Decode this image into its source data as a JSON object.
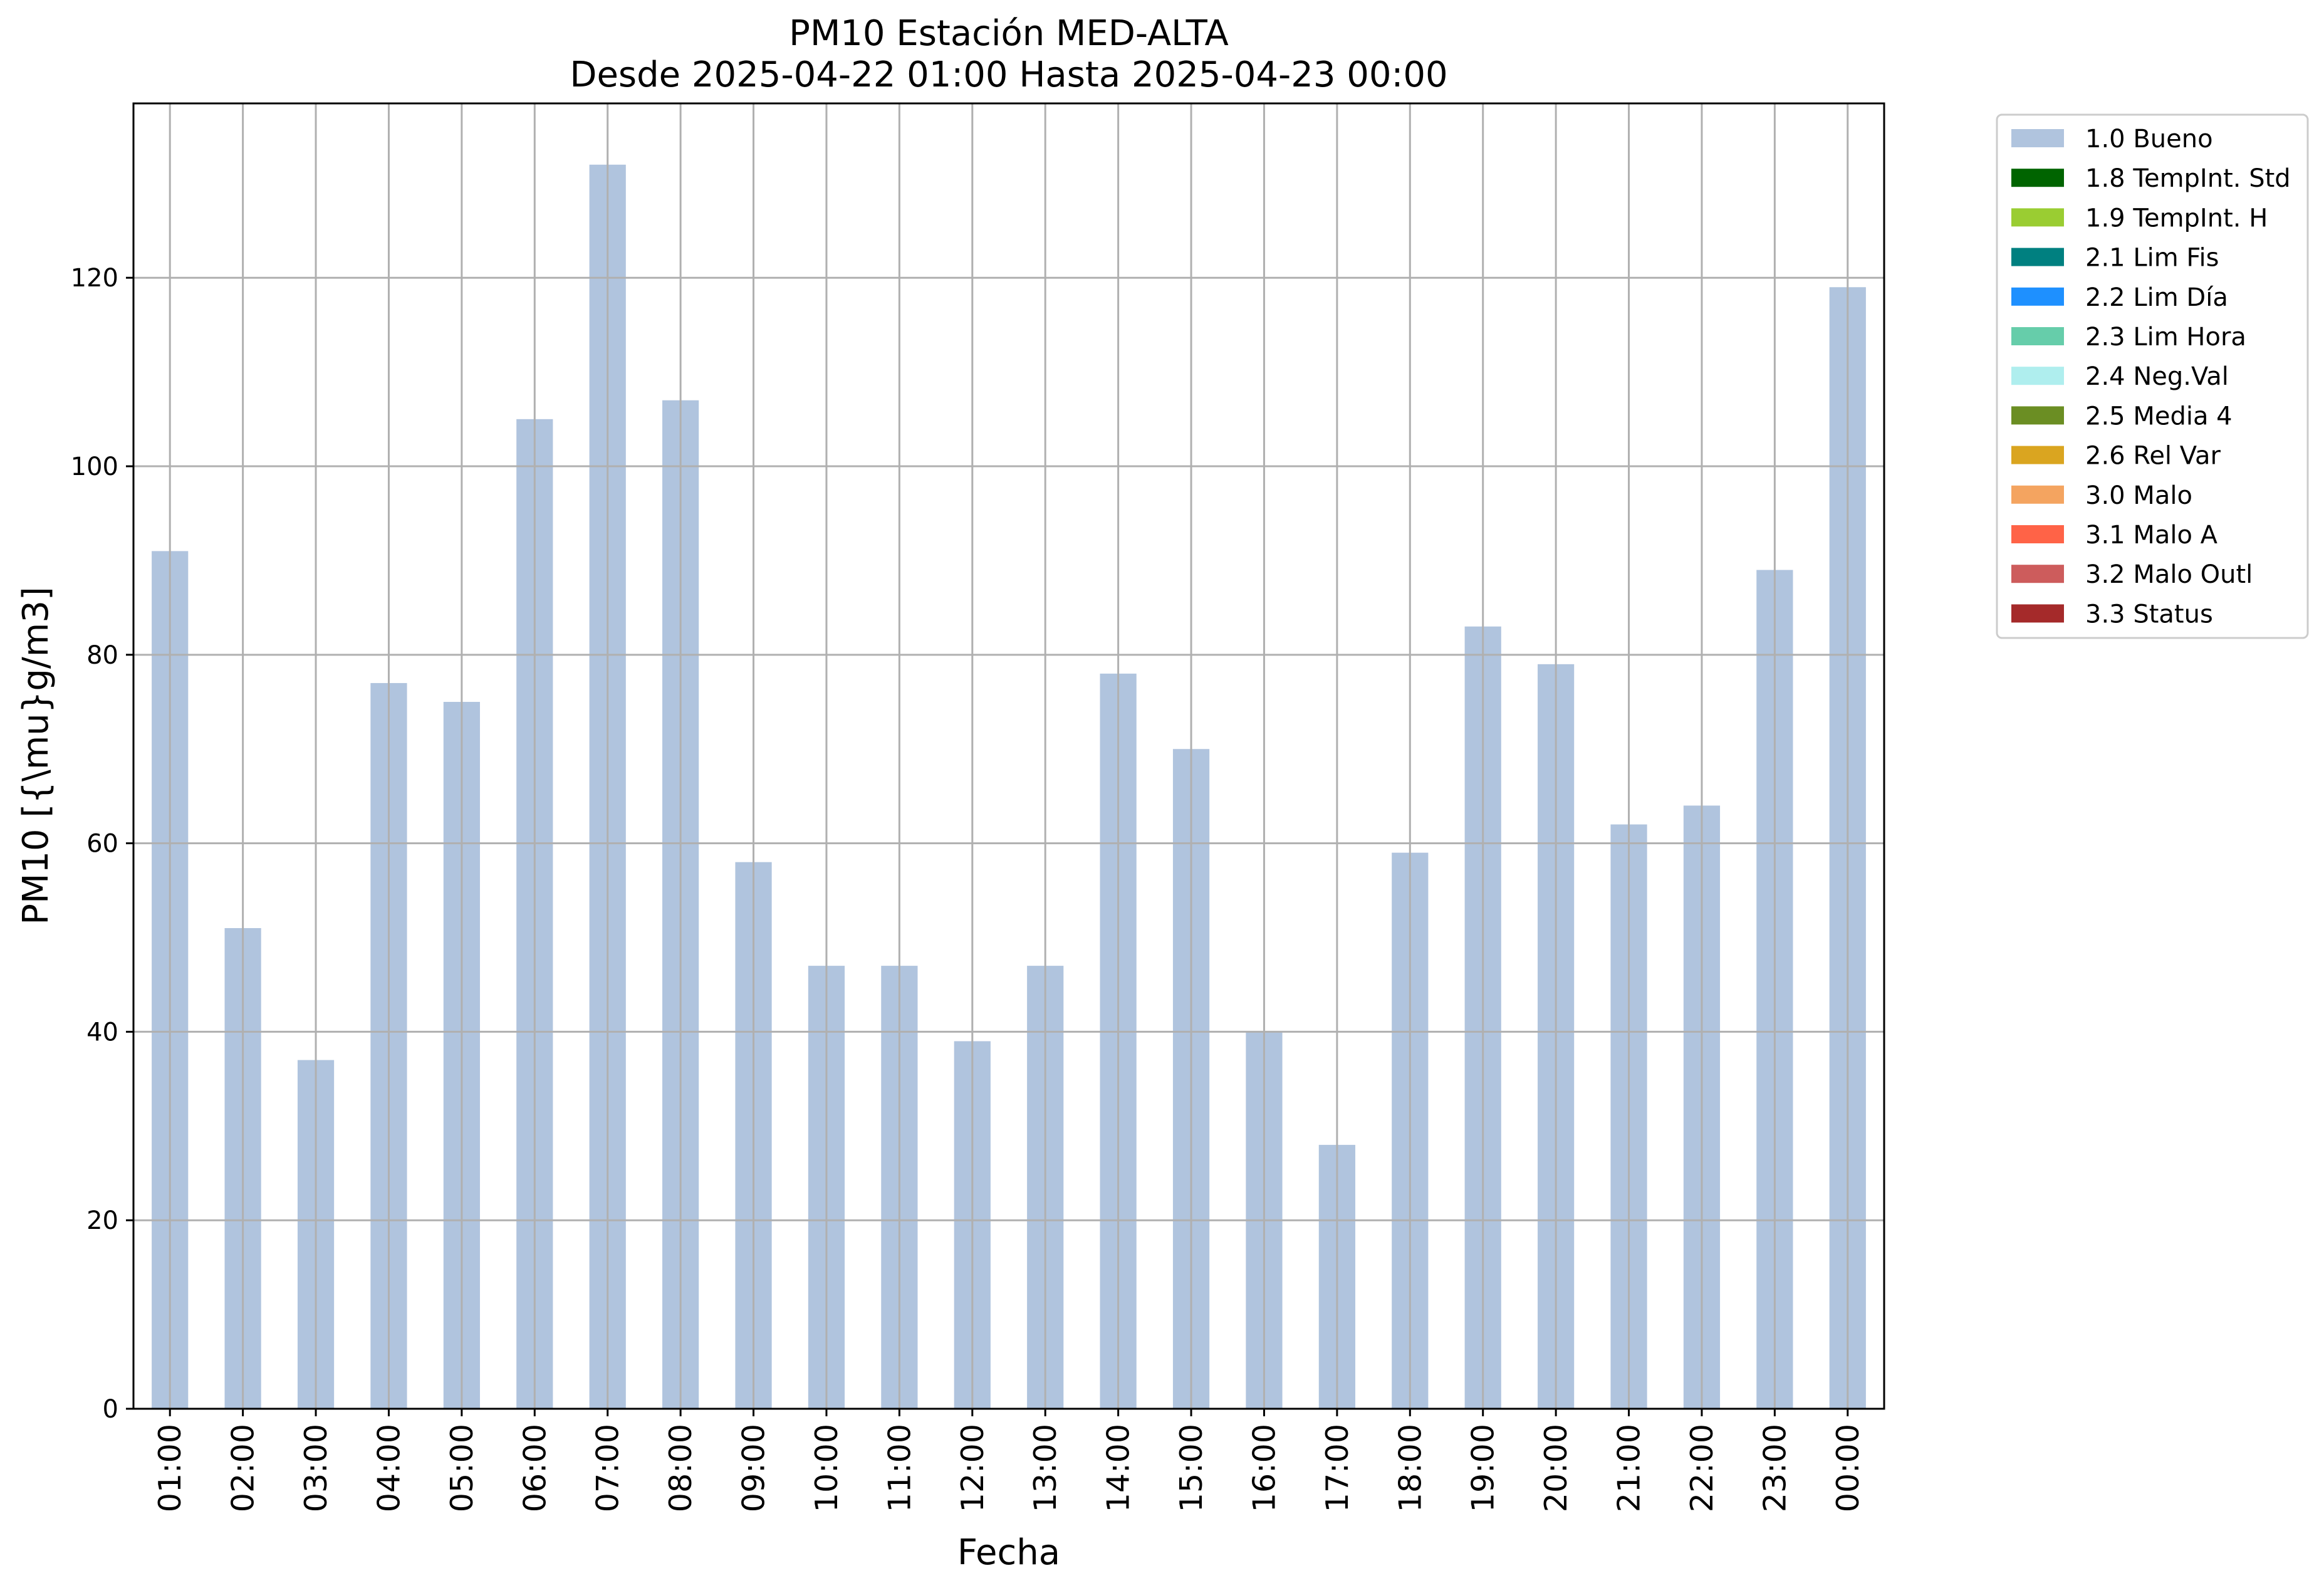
{
  "chart_data": {
    "type": "bar",
    "title_line1": "PM10 Estación MED-ALTA",
    "title_line2": "Desde 2025-04-22 01:00 Hasta 2025-04-23 00:00",
    "xlabel": "Fecha",
    "ylabel": "PM10 [{\\mu}g/m3]",
    "categories": [
      "01:00",
      "02:00",
      "03:00",
      "04:00",
      "05:00",
      "06:00",
      "07:00",
      "08:00",
      "09:00",
      "10:00",
      "11:00",
      "12:00",
      "13:00",
      "14:00",
      "15:00",
      "16:00",
      "17:00",
      "18:00",
      "19:00",
      "20:00",
      "21:00",
      "22:00",
      "23:00",
      "00:00"
    ],
    "series": [
      {
        "name": "1.0 Bueno",
        "color": "#b0c4de",
        "values": [
          91,
          51,
          37,
          77,
          75,
          105,
          132,
          107,
          58,
          47,
          47,
          39,
          47,
          78,
          70,
          40,
          28,
          59,
          83,
          79,
          62,
          64,
          89,
          119
        ]
      }
    ],
    "ylim": [
      0,
      138.5
    ],
    "yticks": [
      0,
      20,
      40,
      60,
      80,
      100,
      120
    ],
    "grid": true,
    "legend_position": "outside-right-top",
    "legend": [
      {
        "label": "1.0 Bueno",
        "color": "#b0c4de"
      },
      {
        "label": "1.8 TempInt. Std",
        "color": "#006400"
      },
      {
        "label": "1.9 TempInt. H",
        "color": "#9acd32"
      },
      {
        "label": "2.1 Lim Fis",
        "color": "#008080"
      },
      {
        "label": "2.2 Lim Día",
        "color": "#1e90ff"
      },
      {
        "label": "2.3 Lim Hora",
        "color": "#66cdaa"
      },
      {
        "label": "2.4 Neg.Val",
        "color": "#afeeee"
      },
      {
        "label": "2.5 Media 4",
        "color": "#6b8e23"
      },
      {
        "label": "2.6 Rel Var",
        "color": "#daa520"
      },
      {
        "label": "3.0 Malo",
        "color": "#f4a460"
      },
      {
        "label": "3.1 Malo A",
        "color": "#ff6347"
      },
      {
        "label": "3.2 Malo Outl",
        "color": "#cd5c5c"
      },
      {
        "label": "3.3 Status",
        "color": "#a52a2a"
      }
    ]
  }
}
